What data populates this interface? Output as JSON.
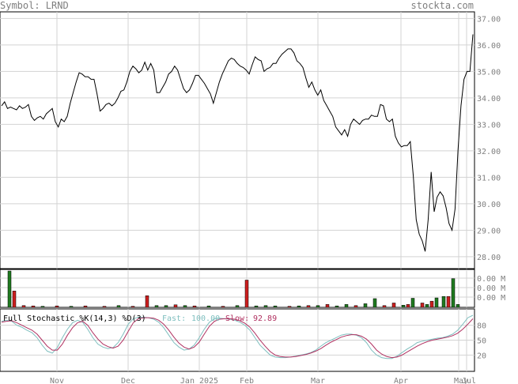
{
  "header": {
    "symbol_label": "Symbol: LRND",
    "site": "stockta.com"
  },
  "stochastic": {
    "title": "Full Stochastic %K(14,3) %D(3)",
    "fast_label": "Fast:",
    "fast_value": "100.00",
    "slow_label": "Slow:",
    "slow_value": "92.89"
  },
  "colors": {
    "price_line": "#000000",
    "grid": "#d3d3d3",
    "axis_text": "#7f7f7f",
    "vol_up": "#1f7a1f",
    "vol_down": "#cc1f1f",
    "fast_line": "#7fbfbf",
    "slow_line": "#b03060"
  },
  "chart_data": [
    {
      "type": "line",
      "title": "",
      "x_tick_labels": [
        "Nov",
        "Dec",
        "Jan 2025",
        "Feb",
        "Mar",
        "Apr",
        "May",
        "Jul"
      ],
      "y_tick_labels": [
        "37.00",
        "36.00",
        "35.00",
        "34.00",
        "33.00",
        "32.00",
        "31.00",
        "30.00",
        "29.00",
        "28.00"
      ],
      "ylim": [
        27.55,
        37.25
      ],
      "grid": true,
      "series": [
        {
          "values": [
            33.7,
            33.85,
            33.6,
            33.65,
            33.6,
            33.55,
            33.7,
            33.6,
            33.65,
            33.75,
            33.3,
            33.15,
            33.25,
            33.3,
            33.2,
            33.4,
            33.5,
            33.6,
            33.1,
            32.9,
            33.2,
            33.1,
            33.3,
            33.8,
            34.2,
            34.6,
            34.95,
            34.9,
            34.8,
            34.8,
            34.7,
            34.7,
            34.15,
            33.5,
            33.6,
            33.75,
            33.8,
            33.7,
            33.8,
            34.0,
            34.25,
            34.3,
            34.6,
            35.0,
            35.2,
            35.1,
            34.95,
            35.05,
            35.35,
            35.05,
            35.3,
            35.05,
            34.2,
            34.2,
            34.4,
            34.6,
            34.9,
            35.0,
            35.2,
            35.05,
            34.7,
            34.35,
            34.2,
            34.3,
            34.55,
            34.85,
            34.85,
            34.7,
            34.55,
            34.35,
            34.15,
            33.8,
            34.2,
            34.6,
            34.9,
            35.15,
            35.4,
            35.5,
            35.45,
            35.3,
            35.2,
            35.15,
            35.05,
            34.9,
            35.25,
            35.55,
            35.45,
            35.4,
            35.0,
            35.1,
            35.15,
            35.3,
            35.3,
            35.5,
            35.65,
            35.75,
            35.85,
            35.85,
            35.7,
            35.4,
            35.3,
            35.15,
            34.75,
            34.4,
            34.6,
            34.3,
            34.1,
            34.3,
            33.9,
            33.7,
            33.5,
            33.3,
            32.9,
            32.75,
            32.6,
            32.8,
            32.55,
            33.0,
            33.2,
            33.1,
            33.0,
            33.15,
            33.2,
            33.2,
            33.35,
            33.3,
            33.3,
            33.75,
            33.7,
            33.2,
            33.1,
            33.2,
            32.55,
            32.3,
            32.15,
            32.2,
            32.2,
            32.35,
            31.05,
            29.4,
            28.85,
            28.6,
            28.2,
            29.4,
            31.2,
            29.7,
            30.25,
            30.45,
            30.3,
            29.85,
            29.25,
            29.0,
            29.8,
            32.0,
            33.7,
            34.7,
            35.0,
            35.0,
            36.4
          ]
        }
      ]
    },
    {
      "type": "bar",
      "title": "",
      "y_tick_labels": [
        "0.00 M",
        "0.00 M",
        "0.00 M"
      ],
      "bars": [
        {
          "x": 0.02,
          "v": 1.0,
          "c": "up"
        },
        {
          "x": 0.03,
          "v": 0.45,
          "c": "down"
        },
        {
          "x": 0.05,
          "v": 0.05,
          "c": "down"
        },
        {
          "x": 0.07,
          "v": 0.04,
          "c": "down"
        },
        {
          "x": 0.09,
          "v": 0.03,
          "c": "up"
        },
        {
          "x": 0.12,
          "v": 0.04,
          "c": "down"
        },
        {
          "x": 0.15,
          "v": 0.03,
          "c": "up"
        },
        {
          "x": 0.18,
          "v": 0.04,
          "c": "down"
        },
        {
          "x": 0.22,
          "v": 0.03,
          "c": "down"
        },
        {
          "x": 0.25,
          "v": 0.05,
          "c": "up"
        },
        {
          "x": 0.28,
          "v": 0.03,
          "c": "down"
        },
        {
          "x": 0.31,
          "v": 0.32,
          "c": "down"
        },
        {
          "x": 0.33,
          "v": 0.05,
          "c": "up"
        },
        {
          "x": 0.35,
          "v": 0.05,
          "c": "up"
        },
        {
          "x": 0.37,
          "v": 0.07,
          "c": "down"
        },
        {
          "x": 0.39,
          "v": 0.05,
          "c": "up"
        },
        {
          "x": 0.41,
          "v": 0.04,
          "c": "down"
        },
        {
          "x": 0.44,
          "v": 0.04,
          "c": "up"
        },
        {
          "x": 0.47,
          "v": 0.03,
          "c": "down"
        },
        {
          "x": 0.5,
          "v": 0.05,
          "c": "up"
        },
        {
          "x": 0.52,
          "v": 0.75,
          "c": "down"
        },
        {
          "x": 0.54,
          "v": 0.04,
          "c": "up"
        },
        {
          "x": 0.56,
          "v": 0.05,
          "c": "up"
        },
        {
          "x": 0.58,
          "v": 0.04,
          "c": "up"
        },
        {
          "x": 0.61,
          "v": 0.03,
          "c": "down"
        },
        {
          "x": 0.63,
          "v": 0.04,
          "c": "up"
        },
        {
          "x": 0.65,
          "v": 0.05,
          "c": "down"
        },
        {
          "x": 0.67,
          "v": 0.05,
          "c": "up"
        },
        {
          "x": 0.69,
          "v": 0.08,
          "c": "down"
        },
        {
          "x": 0.71,
          "v": 0.04,
          "c": "up"
        },
        {
          "x": 0.73,
          "v": 0.08,
          "c": "up"
        },
        {
          "x": 0.75,
          "v": 0.05,
          "c": "down"
        },
        {
          "x": 0.77,
          "v": 0.1,
          "c": "up"
        },
        {
          "x": 0.79,
          "v": 0.24,
          "c": "up"
        },
        {
          "x": 0.81,
          "v": 0.05,
          "c": "down"
        },
        {
          "x": 0.83,
          "v": 0.12,
          "c": "down"
        },
        {
          "x": 0.85,
          "v": 0.06,
          "c": "up"
        },
        {
          "x": 0.86,
          "v": 0.08,
          "c": "down"
        },
        {
          "x": 0.87,
          "v": 0.25,
          "c": "up"
        },
        {
          "x": 0.89,
          "v": 0.12,
          "c": "down"
        },
        {
          "x": 0.9,
          "v": 0.08,
          "c": "up"
        },
        {
          "x": 0.91,
          "v": 0.17,
          "c": "down"
        },
        {
          "x": 0.92,
          "v": 0.26,
          "c": "up"
        },
        {
          "x": 0.935,
          "v": 0.3,
          "c": "up"
        },
        {
          "x": 0.945,
          "v": 0.3,
          "c": "down"
        },
        {
          "x": 0.955,
          "v": 0.79,
          "c": "up"
        },
        {
          "x": 0.965,
          "v": 0.08,
          "c": "up"
        }
      ]
    },
    {
      "type": "line",
      "title": "",
      "y_tick_labels": [
        "80",
        "50",
        "20"
      ],
      "ylim": [
        0,
        100
      ],
      "series": [
        {
          "name": "Fast",
          "values": [
            88,
            90,
            88,
            80,
            76,
            70,
            65,
            55,
            40,
            28,
            24,
            35,
            55,
            72,
            85,
            90,
            86,
            72,
            55,
            42,
            36,
            33,
            35,
            45,
            62,
            82,
            93,
            96,
            96,
            95,
            92,
            86,
            75,
            60,
            45,
            36,
            30,
            32,
            40,
            55,
            72,
            86,
            93,
            94,
            93,
            92,
            90,
            86,
            80,
            70,
            55,
            40,
            30,
            20,
            16,
            15,
            15,
            16,
            18,
            20,
            22,
            25,
            30,
            38,
            45,
            50,
            55,
            60,
            62,
            62,
            60,
            55,
            45,
            30,
            20,
            15,
            13,
            13,
            18,
            25,
            32,
            38,
            45,
            48,
            50,
            52,
            54,
            55,
            58,
            62,
            70,
            82,
            95,
            100
          ]
        },
        {
          "name": "Slow",
          "values": [
            86,
            88,
            89,
            85,
            80,
            75,
            70,
            62,
            50,
            38,
            30,
            30,
            42,
            60,
            75,
            85,
            88,
            80,
            65,
            52,
            42,
            37,
            34,
            38,
            50,
            68,
            85,
            93,
            95,
            95,
            94,
            90,
            82,
            70,
            56,
            44,
            36,
            32,
            36,
            46,
            62,
            78,
            88,
            92,
            93,
            93,
            92,
            89,
            84,
            76,
            64,
            50,
            38,
            27,
            20,
            17,
            16,
            16,
            17,
            19,
            21,
            24,
            28,
            33,
            40,
            46,
            51,
            56,
            59,
            61,
            61,
            58,
            52,
            42,
            30,
            22,
            17,
            15,
            16,
            20,
            26,
            32,
            38,
            43,
            47,
            50,
            52,
            54,
            56,
            59,
            64,
            72,
            82,
            93
          ]
        }
      ]
    }
  ]
}
